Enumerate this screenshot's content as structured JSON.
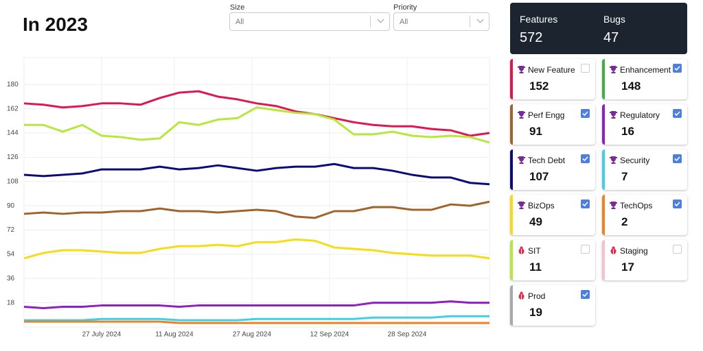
{
  "header": {
    "title": "In 2023"
  },
  "filters": [
    {
      "label": "Size",
      "value": "All"
    },
    {
      "label": "Priority",
      "value": "All"
    }
  ],
  "summary": [
    {
      "label": "Features",
      "value": 572
    },
    {
      "label": "Bugs",
      "value": 47
    }
  ],
  "cards": [
    {
      "name": "New Feature",
      "count": 152,
      "color": "#e0174f",
      "icon": "trophy",
      "checked": false
    },
    {
      "name": "Enhancement",
      "count": 148,
      "color": "#3cb043",
      "icon": "trophy",
      "checked": true
    },
    {
      "name": "Perf Engg",
      "count": 91,
      "color": "#a0642a",
      "icon": "trophy",
      "checked": true
    },
    {
      "name": "Regulatory",
      "count": 16,
      "color": "#8e1fc0",
      "icon": "trophy",
      "checked": true
    },
    {
      "name": "Tech Debt",
      "count": 107,
      "color": "#0a0a7a",
      "icon": "trophy",
      "checked": true
    },
    {
      "name": "Security",
      "count": 7,
      "color": "#3fd0e8",
      "icon": "trophy",
      "checked": true
    },
    {
      "name": "BizOps",
      "count": 49,
      "color": "#f5dc14",
      "icon": "trophy",
      "checked": true
    },
    {
      "name": "TechOps",
      "count": 2,
      "color": "#f08020",
      "icon": "trophy",
      "checked": true
    },
    {
      "name": "SIT",
      "count": 11,
      "color": "#b5e83b",
      "icon": "bug",
      "checked": false
    },
    {
      "name": "Staging",
      "count": 17,
      "color": "#f7c0cc",
      "icon": "bug",
      "checked": false
    },
    {
      "name": "Prod",
      "count": 19,
      "color": "#a8a8a8",
      "icon": "bug",
      "checked": true
    }
  ],
  "chart_data": {
    "type": "line",
    "x": [
      "2024-07-11",
      "2024-07-15",
      "2024-07-19",
      "2024-07-23",
      "2024-07-27",
      "2024-07-31",
      "2024-08-04",
      "2024-08-08",
      "2024-08-12",
      "2024-08-16",
      "2024-08-20",
      "2024-08-24",
      "2024-08-28",
      "2024-09-01",
      "2024-09-05",
      "2024-09-09",
      "2024-09-13",
      "2024-09-17",
      "2024-09-21",
      "2024-09-25",
      "2024-09-29",
      "2024-10-03",
      "2024-10-07",
      "2024-10-11",
      "2024-10-15"
    ],
    "xlim": [
      "2024-07-11",
      "2024-10-15"
    ],
    "xticks": [
      {
        "value": "2024-07-27",
        "label": "27 July 2024"
      },
      {
        "value": "2024-08-11",
        "label": "11 Aug 2024"
      },
      {
        "value": "2024-08-27",
        "label": "27 Aug 2024"
      },
      {
        "value": "2024-09-12",
        "label": "12 Sep 2024"
      },
      {
        "value": "2024-09-28",
        "label": "28 Sep 2024"
      }
    ],
    "ylim": [
      0,
      200
    ],
    "yticks": [
      18,
      36,
      54,
      72,
      90,
      108,
      126,
      144,
      162,
      180
    ],
    "grid": true,
    "series": [
      {
        "color": "#e0174f",
        "values": [
          166,
          165,
          163,
          164,
          166,
          166,
          165,
          170,
          174,
          175,
          171,
          169,
          166,
          164,
          160,
          158,
          155,
          152,
          150,
          149,
          149,
          147,
          146,
          142,
          144
        ]
      },
      {
        "color": "#b5e83b",
        "values": [
          150,
          150,
          145,
          150,
          142,
          141,
          139,
          140,
          152,
          150,
          154,
          155,
          163,
          161,
          159,
          158,
          154,
          143,
          143,
          145,
          142,
          141,
          142,
          141,
          137
        ]
      },
      {
        "color": "#0a0a7a",
        "values": [
          113,
          112,
          113,
          114,
          117,
          117,
          117,
          119,
          117,
          118,
          120,
          118,
          116,
          118,
          119,
          119,
          121,
          118,
          118,
          116,
          113,
          111,
          111,
          107,
          106
        ]
      },
      {
        "color": "#a0642a",
        "values": [
          84,
          85,
          84,
          85,
          85,
          86,
          86,
          88,
          86,
          86,
          85,
          86,
          87,
          86,
          82,
          81,
          86,
          86,
          89,
          89,
          87,
          87,
          91,
          90,
          93
        ]
      },
      {
        "color": "#f5dc14",
        "values": [
          51,
          55,
          57,
          57,
          56,
          55,
          55,
          58,
          60,
          60,
          61,
          60,
          63,
          63,
          65,
          64,
          59,
          58,
          57,
          55,
          54,
          53,
          53,
          53,
          51
        ]
      },
      {
        "color": "#8e1fc0",
        "values": [
          15,
          14,
          15,
          15,
          16,
          16,
          16,
          16,
          15,
          16,
          16,
          16,
          16,
          16,
          16,
          16,
          16,
          16,
          18,
          18,
          18,
          18,
          19,
          18,
          18
        ]
      },
      {
        "color": "#3fd0e8",
        "values": [
          5,
          5,
          5,
          5,
          6,
          6,
          6,
          6,
          5,
          5,
          5,
          5,
          6,
          6,
          6,
          6,
          6,
          6,
          7,
          7,
          7,
          7,
          8,
          8,
          8
        ]
      },
      {
        "color": "#f08020",
        "values": [
          4,
          4,
          4,
          4,
          4,
          4,
          4,
          4,
          3,
          3,
          3,
          3,
          3,
          3,
          3,
          3,
          3,
          3,
          3,
          3,
          3,
          3,
          3,
          3,
          3
        ]
      }
    ]
  }
}
